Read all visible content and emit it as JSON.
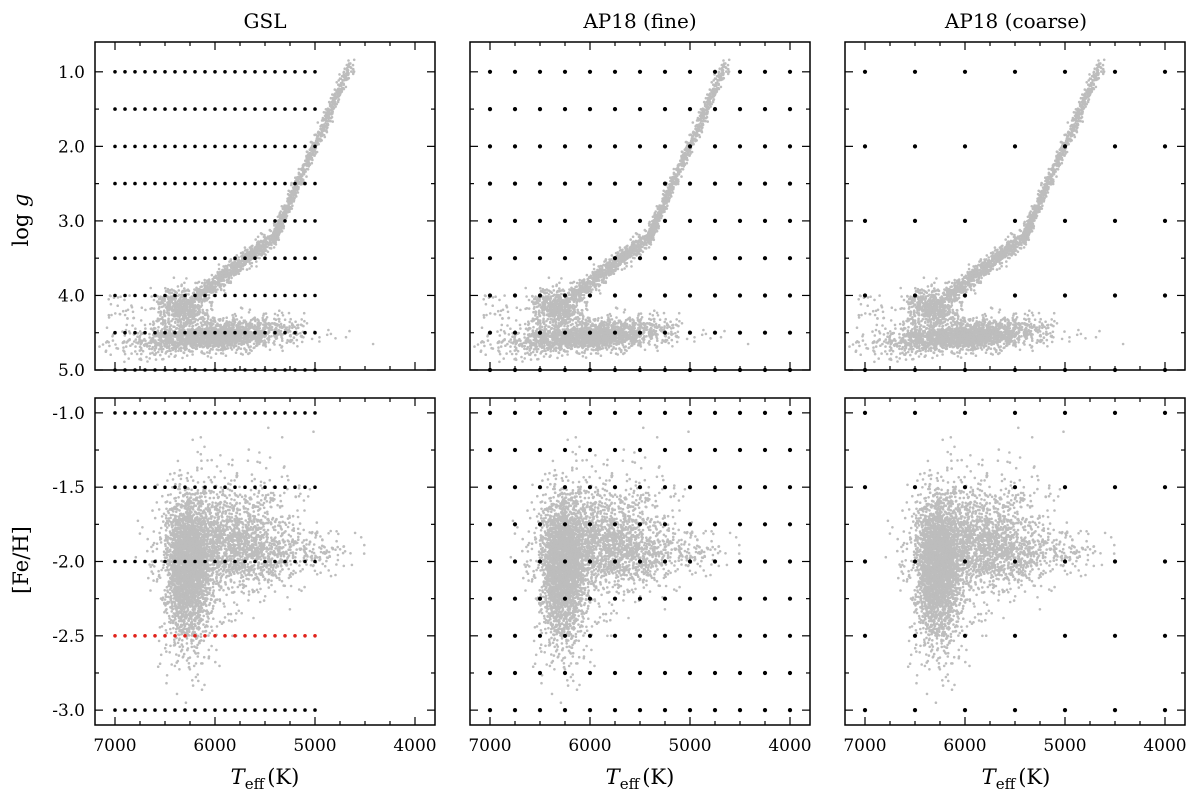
{
  "figure": {
    "column_titles": [
      "GSL",
      "AP18 (fine)",
      "AP18 (coarse)"
    ],
    "xlabel_symbol": "T",
    "xlabel_subscript": "eff",
    "xlabel_unit": "(K)",
    "ylabel_top_prefix": "log ",
    "ylabel_top_symbol": "g",
    "ylabel_bottom": "[Fe/H]",
    "star_color": "#bdbdbd",
    "grid_color": "#000000",
    "highlight_color": "#e0231c"
  },
  "chart_data": [
    {
      "type": "scatter",
      "title": "GSL",
      "xlabel": "Teff (K)",
      "ylabel": "log g",
      "xlim": [
        7200,
        3800
      ],
      "ylim": [
        5.0,
        0.6
      ],
      "xticks": [
        "7000",
        "6000",
        "5000",
        "4000"
      ],
      "yticks": [
        "1.0",
        "2.0",
        "3.0",
        "4.0",
        "5.0"
      ],
      "series": [
        {
          "name": "model grid",
          "teff_range": [
            7000,
            5000
          ],
          "teff_step": 100,
          "levels": [
            1.0,
            1.5,
            2.0,
            2.5,
            3.0,
            3.5,
            4.0,
            4.5,
            5.0
          ]
        },
        {
          "name": "stars",
          "distribution": "isochrone"
        }
      ]
    },
    {
      "type": "scatter",
      "title": "AP18 (fine)",
      "xlabel": "Teff (K)",
      "ylabel": "log g",
      "xlim": [
        7200,
        3800
      ],
      "ylim": [
        5.0,
        0.6
      ],
      "xticks": [
        "7000",
        "6000",
        "5000",
        "4000"
      ],
      "yticks": [
        "1.0",
        "2.0",
        "3.0",
        "4.0",
        "5.0"
      ],
      "series": [
        {
          "name": "model grid",
          "teff_range": [
            7000,
            4000
          ],
          "teff_step": 250,
          "levels": [
            1.0,
            1.5,
            2.0,
            2.5,
            3.0,
            3.5,
            4.0,
            4.5,
            5.0
          ]
        },
        {
          "name": "stars",
          "distribution": "isochrone"
        }
      ]
    },
    {
      "type": "scatter",
      "title": "AP18 (coarse)",
      "xlabel": "Teff (K)",
      "ylabel": "log g",
      "xlim": [
        7200,
        3800
      ],
      "ylim": [
        5.0,
        0.6
      ],
      "xticks": [
        "7000",
        "6000",
        "5000",
        "4000"
      ],
      "yticks": [
        "1.0",
        "2.0",
        "3.0",
        "4.0",
        "5.0"
      ],
      "series": [
        {
          "name": "model grid",
          "teff_range": [
            7000,
            4000
          ],
          "teff_step": 500,
          "levels": [
            1.0,
            2.0,
            3.0,
            4.0,
            5.0
          ]
        },
        {
          "name": "stars",
          "distribution": "isochrone"
        }
      ]
    },
    {
      "type": "scatter",
      "title": "GSL",
      "xlabel": "Teff (K)",
      "ylabel": "[Fe/H]",
      "xlim": [
        7200,
        3800
      ],
      "ylim": [
        -3.1,
        -0.9
      ],
      "xticks": [
        "7000",
        "6000",
        "5000",
        "4000"
      ],
      "yticks": [
        "-1.0",
        "-1.5",
        "-2.0",
        "-2.5",
        "-3.0"
      ],
      "series": [
        {
          "name": "model grid",
          "teff_range": [
            7000,
            5000
          ],
          "teff_step": 100,
          "levels": [
            -1.0,
            -1.5,
            -2.0,
            -3.0
          ]
        },
        {
          "name": "interpolated grid",
          "teff_range": [
            7000,
            5000
          ],
          "teff_step": 100,
          "levels": [
            -2.5
          ],
          "color": "#e0231c"
        },
        {
          "name": "stars",
          "distribution": "metallicity"
        }
      ]
    },
    {
      "type": "scatter",
      "title": "AP18 (fine)",
      "xlabel": "Teff (K)",
      "ylabel": "[Fe/H]",
      "xlim": [
        7200,
        3800
      ],
      "ylim": [
        -3.1,
        -0.9
      ],
      "xticks": [
        "7000",
        "6000",
        "5000",
        "4000"
      ],
      "yticks": [
        "-1.0",
        "-1.5",
        "-2.0",
        "-2.5",
        "-3.0"
      ],
      "series": [
        {
          "name": "model grid",
          "teff_range": [
            7000,
            4000
          ],
          "teff_step": 250,
          "levels": [
            -1.0,
            -1.25,
            -1.5,
            -1.75,
            -2.0,
            -2.25,
            -2.5,
            -2.75,
            -3.0
          ]
        },
        {
          "name": "stars",
          "distribution": "metallicity"
        }
      ]
    },
    {
      "type": "scatter",
      "title": "AP18 (coarse)",
      "xlabel": "Teff (K)",
      "ylabel": "[Fe/H]",
      "xlim": [
        7200,
        3800
      ],
      "ylim": [
        -3.1,
        -0.9
      ],
      "xticks": [
        "7000",
        "6000",
        "5000",
        "4000"
      ],
      "yticks": [
        "-1.0",
        "-1.5",
        "-2.0",
        "-2.5",
        "-3.0"
      ],
      "series": [
        {
          "name": "model grid",
          "teff_range": [
            7000,
            4000
          ],
          "teff_step": 500,
          "levels": [
            -1.0,
            -1.5,
            -2.0,
            -2.5,
            -3.0
          ]
        },
        {
          "name": "stars",
          "distribution": "metallicity"
        }
      ]
    }
  ]
}
